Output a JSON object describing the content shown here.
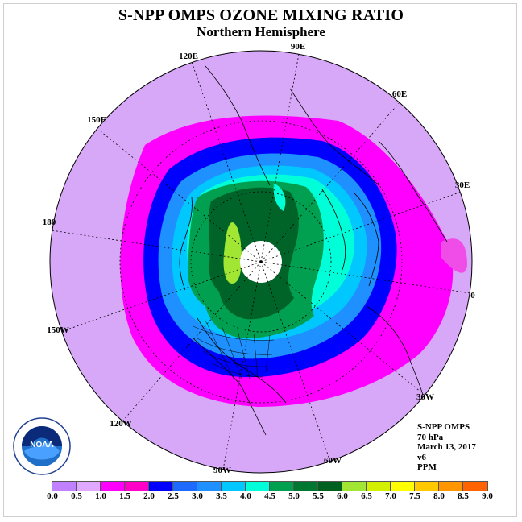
{
  "title": "S-NPP OMPS OZONE MIXING RATIO",
  "subtitle": "Northern Hemisphere",
  "longitude_labels": [
    "90E",
    "60E",
    "30E",
    "0",
    "30W",
    "60W",
    "90W",
    "120W",
    "150W",
    "180",
    "150E",
    "120E"
  ],
  "info": {
    "product": "S-NPP OMPS",
    "pressure_level": "70 hPa",
    "date": "March 13, 2017",
    "version": "v6",
    "unit": "PPM"
  },
  "logo_text": "NOAA",
  "colorbar": {
    "ticks": [
      "0.0",
      "0.5",
      "1.0",
      "1.5",
      "2.0",
      "2.5",
      "3.0",
      "3.5",
      "4.0",
      "4.5",
      "5.0",
      "5.5",
      "6.0",
      "6.5",
      "7.0",
      "7.5",
      "8.0",
      "8.5",
      "9.0"
    ],
    "colors": [
      "#c080ff",
      "#e0a8ff",
      "#ff00ff",
      "#ff00c8",
      "#0000ff",
      "#1e6aff",
      "#1e90ff",
      "#00c8ff",
      "#00ffd8",
      "#00a050",
      "#007832",
      "#006020",
      "#a0e632",
      "#d2f000",
      "#ffff00",
      "#ffc800",
      "#ff9600",
      "#ff6400",
      "#ff0000",
      "#8c5032"
    ]
  },
  "map_colors": {
    "background": "#d8a8f8",
    "band_magenta": "#ff00ff",
    "band_pink": "#f04ce8",
    "band_blue": "#0000ff",
    "band_mid_blue": "#1e90ff",
    "band_light_blue": "#00c8ff",
    "band_cyan": "#00ffd8",
    "band_green": "#00a050",
    "band_dark_green": "#006428",
    "band_yellow_green": "#a0e632",
    "polar_hole": "#ffffff"
  }
}
